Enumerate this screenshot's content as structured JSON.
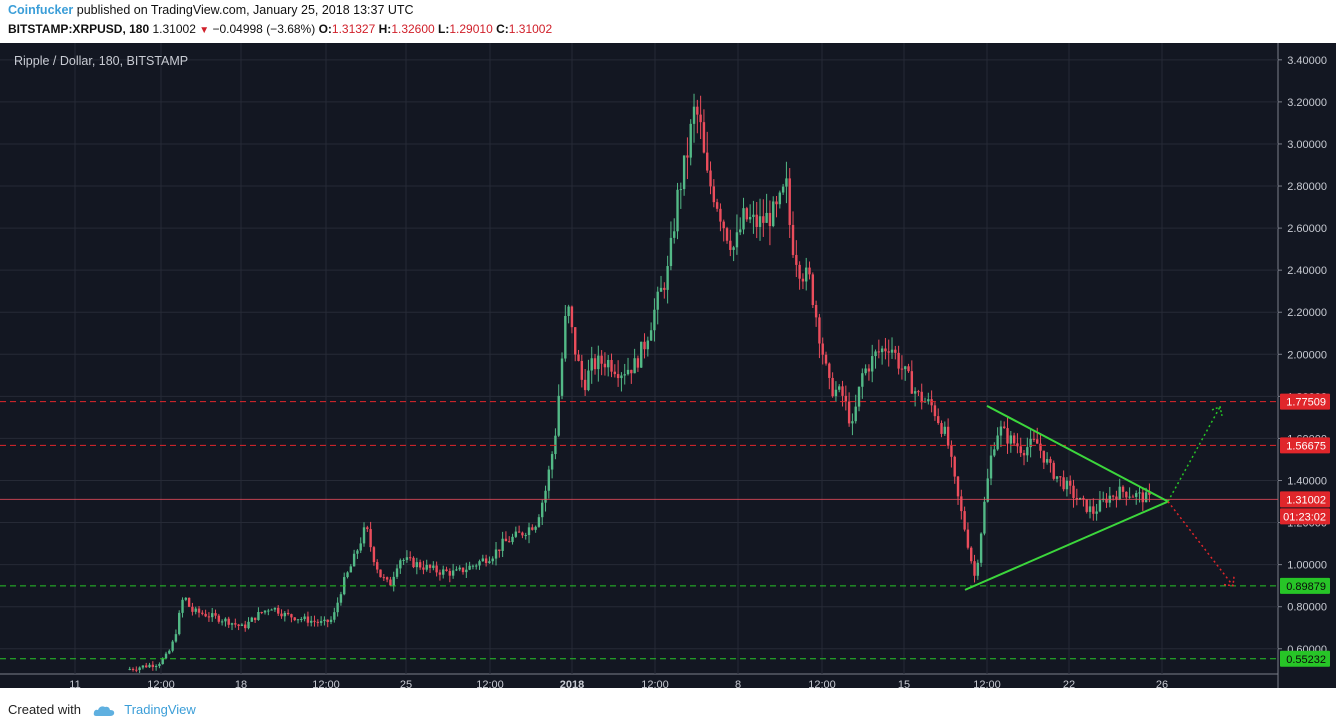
{
  "header": {
    "author": "Coinfucker",
    "published_text": "published on TradingView.com, January 25, 2018 13:37 UTC"
  },
  "ohlc": {
    "symbol": "BITSTAMP:XRPUSD, 180",
    "last": "1.31002",
    "change": "−0.04998 (−3.68%)",
    "o_label": "O:",
    "o": "1.31327",
    "h_label": "H:",
    "h": "1.32600",
    "l_label": "L:",
    "l": "1.29010",
    "c_label": "C:",
    "c": "1.31002"
  },
  "chart_data": {
    "type": "candlestick",
    "title": "Ripple / Dollar, 180, BITSTAMP",
    "y_ticks": [
      "0.60000",
      "0.80000",
      "1.00000",
      "1.20000",
      "1.40000",
      "1.60000",
      "1.80000",
      "2.00000",
      "2.20000",
      "2.40000",
      "2.60000",
      "2.80000",
      "3.00000",
      "3.20000",
      "3.40000"
    ],
    "ylim": [
      0.48,
      3.48
    ],
    "x_ticks": [
      "11",
      "12:00",
      "18",
      "12:00",
      "25",
      "12:00",
      "2018",
      "12:00",
      "8",
      "12:00",
      "15",
      "12:00",
      "22",
      "26"
    ],
    "grid": true,
    "background": "#131722",
    "up_color": "#53b987",
    "down_color": "#eb4d5c",
    "close_path": [
      [
        0.0,
        0.5
      ],
      [
        0.35,
        0.53
      ],
      [
        0.45,
        0.57
      ],
      [
        0.5,
        0.62
      ],
      [
        0.55,
        0.7
      ],
      [
        0.6,
        0.82
      ],
      [
        0.63,
        0.85
      ],
      [
        0.7,
        0.78
      ],
      [
        0.8,
        0.77
      ],
      [
        0.95,
        0.75
      ],
      [
        1.1,
        0.73
      ],
      [
        1.25,
        0.7
      ],
      [
        1.4,
        0.76
      ],
      [
        1.55,
        0.8
      ],
      [
        1.7,
        0.76
      ],
      [
        1.9,
        0.74
      ],
      [
        2.1,
        0.72
      ],
      [
        2.2,
        0.74
      ],
      [
        2.3,
        0.9
      ],
      [
        2.4,
        1.0
      ],
      [
        2.55,
        1.18
      ],
      [
        2.62,
        1.05
      ],
      [
        2.7,
        0.95
      ],
      [
        2.8,
        0.9
      ],
      [
        2.9,
        1.03
      ],
      [
        3.1,
        1.0
      ],
      [
        3.3,
        0.97
      ],
      [
        3.5,
        0.96
      ],
      [
        3.7,
        1.0
      ],
      [
        3.9,
        1.05
      ],
      [
        4.0,
        1.1
      ],
      [
        4.2,
        1.15
      ],
      [
        4.35,
        1.2
      ],
      [
        4.45,
        1.35
      ],
      [
        4.55,
        1.6
      ],
      [
        4.62,
        1.95
      ],
      [
        4.68,
        2.25
      ],
      [
        4.75,
        2.05
      ],
      [
        4.85,
        1.85
      ],
      [
        4.95,
        1.95
      ],
      [
        5.1,
        1.97
      ],
      [
        5.25,
        1.92
      ],
      [
        5.4,
        1.95
      ],
      [
        5.5,
        2.05
      ],
      [
        5.6,
        2.2
      ],
      [
        5.75,
        2.4
      ],
      [
        5.85,
        2.75
      ],
      [
        5.95,
        2.95
      ],
      [
        6.02,
        3.15
      ],
      [
        6.08,
        3.12
      ],
      [
        6.15,
        2.85
      ],
      [
        6.25,
        2.75
      ],
      [
        6.35,
        2.6
      ],
      [
        6.45,
        2.5
      ],
      [
        6.55,
        2.65
      ],
      [
        6.7,
        2.62
      ],
      [
        6.9,
        2.68
      ],
      [
        7.0,
        2.8
      ],
      [
        7.05,
        2.55
      ],
      [
        7.15,
        2.4
      ],
      [
        7.25,
        2.35
      ],
      [
        7.35,
        2.1
      ],
      [
        7.45,
        1.85
      ],
      [
        7.6,
        1.8
      ],
      [
        7.7,
        1.65
      ],
      [
        7.8,
        1.9
      ],
      [
        7.95,
        2.0
      ],
      [
        8.1,
        2.05
      ],
      [
        8.2,
        1.95
      ],
      [
        8.4,
        1.8
      ],
      [
        8.55,
        1.75
      ],
      [
        8.7,
        1.6
      ],
      [
        8.8,
        1.35
      ],
      [
        8.9,
        1.15
      ],
      [
        9.0,
        0.93
      ],
      [
        9.1,
        1.3
      ],
      [
        9.18,
        1.55
      ],
      [
        9.25,
        1.65
      ],
      [
        9.35,
        1.6
      ],
      [
        9.5,
        1.55
      ],
      [
        9.65,
        1.58
      ],
      [
        9.8,
        1.45
      ],
      [
        9.95,
        1.38
      ],
      [
        10.1,
        1.3
      ],
      [
        10.25,
        1.25
      ],
      [
        10.4,
        1.32
      ],
      [
        10.55,
        1.35
      ],
      [
        10.7,
        1.33
      ],
      [
        10.85,
        1.31
      ]
    ],
    "levels": [
      {
        "label": "1.77509",
        "value": 1.77509,
        "color": "#e0262b"
      },
      {
        "label": "1.56675",
        "value": 1.56675,
        "color": "#e0262b"
      },
      {
        "label": "0.89879",
        "value": 0.89879,
        "color": "#27c527"
      },
      {
        "label": "0.55232",
        "value": 0.55232,
        "color": "#27c527"
      }
    ],
    "price_label": "1.31002",
    "countdown": "01:23:02",
    "triangle_color": "#3cd63c"
  },
  "footer": {
    "created_with": "Created with",
    "brand": "TradingView"
  }
}
